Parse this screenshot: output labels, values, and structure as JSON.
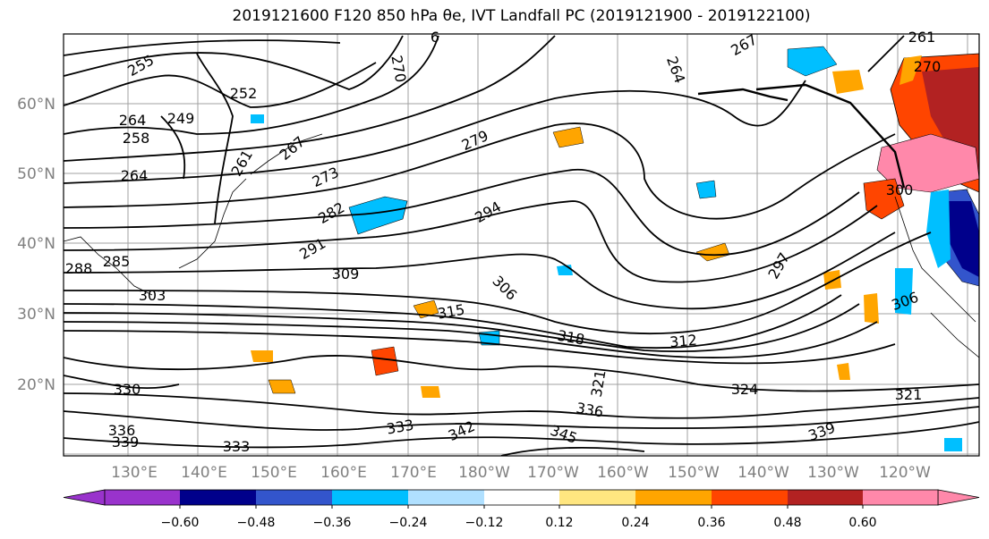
{
  "title": "2019121600 F120 850 hPa θe, IVT Landfall PC (2019121900 - 2019122100)",
  "map": {
    "lat_labels": [
      "60°N",
      "50°N",
      "40°N",
      "30°N",
      "20°N"
    ],
    "lon_labels": [
      "130°E",
      "140°E",
      "150°E",
      "160°E",
      "170°E",
      "180°W",
      "170°W",
      "160°W",
      "150°W",
      "140°W",
      "130°W",
      "120°W"
    ],
    "contour_color": "#000000",
    "grid_color": "#a0a0a0",
    "contour_labels": [
      "255",
      "252",
      "249",
      "258",
      "264",
      "261",
      "267",
      "273",
      "279",
      "270",
      "264",
      "267",
      "6",
      "261",
      "270",
      "282",
      "291",
      "288",
      "285",
      "303",
      "309",
      "294",
      "306",
      "297",
      "315",
      "318",
      "312",
      "306",
      "300",
      "330",
      "336",
      "333",
      "339",
      "333",
      "342",
      "345",
      "321",
      "324",
      "336",
      "339",
      "321",
      "264"
    ]
  },
  "colorbar": {
    "ticks": [
      "−0.60",
      "−0.48",
      "−0.36",
      "−0.24",
      "−0.12",
      "0.12",
      "0.24",
      "0.36",
      "0.48",
      "0.60"
    ],
    "colors": [
      "#9933cc",
      "#00008b",
      "#3355cc",
      "#00bfff",
      "#b0e0ff",
      "#ffffff",
      "#ffe680",
      "#ffa500",
      "#ff4500",
      "#b22222",
      "#ff88aa"
    ],
    "extend": "both"
  }
}
